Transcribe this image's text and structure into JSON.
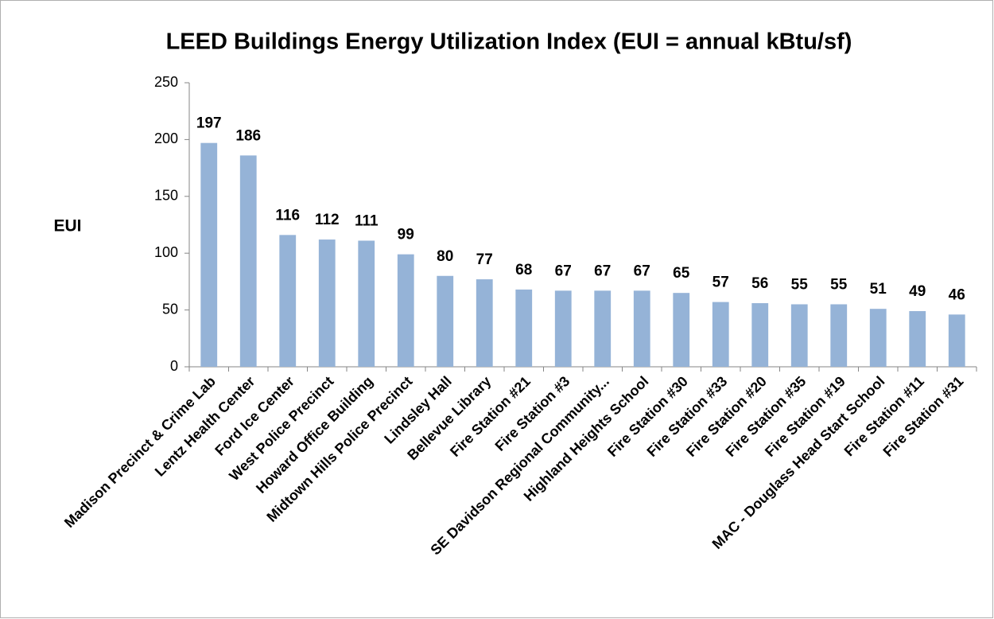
{
  "chart_data": {
    "type": "bar",
    "title": "LEED Buildings Energy Utilization Index (EUI = annual kBtu/sf)",
    "y_label": "EUI",
    "categories": [
      "Madison Precinct & Crime Lab",
      "Lentz Health Center",
      "Ford Ice Center",
      "West Police Precinct",
      "Howard Office Building",
      "Midtown Hills Police Precinct",
      "Lindsley Hall",
      "Bellevue Library",
      "Fire Station #21",
      "Fire Station #3",
      "SE Davidson Regional Community...",
      "Highland Heights School",
      "Fire Station #30",
      "Fire Station #33",
      "Fire Station #20",
      "Fire Station #35",
      "Fire Station #19",
      "MAC - Douglass Head Start School",
      "Fire Station #11",
      "Fire Station #31"
    ],
    "values": [
      197,
      186,
      116,
      112,
      111,
      99,
      80,
      77,
      68,
      67,
      67,
      67,
      65,
      57,
      56,
      55,
      55,
      51,
      49,
      46
    ],
    "color": "#95b3d7",
    "ylim": [
      0,
      250
    ],
    "yticks": [
      0,
      50,
      100,
      150,
      200,
      250
    ],
    "grid": false
  }
}
